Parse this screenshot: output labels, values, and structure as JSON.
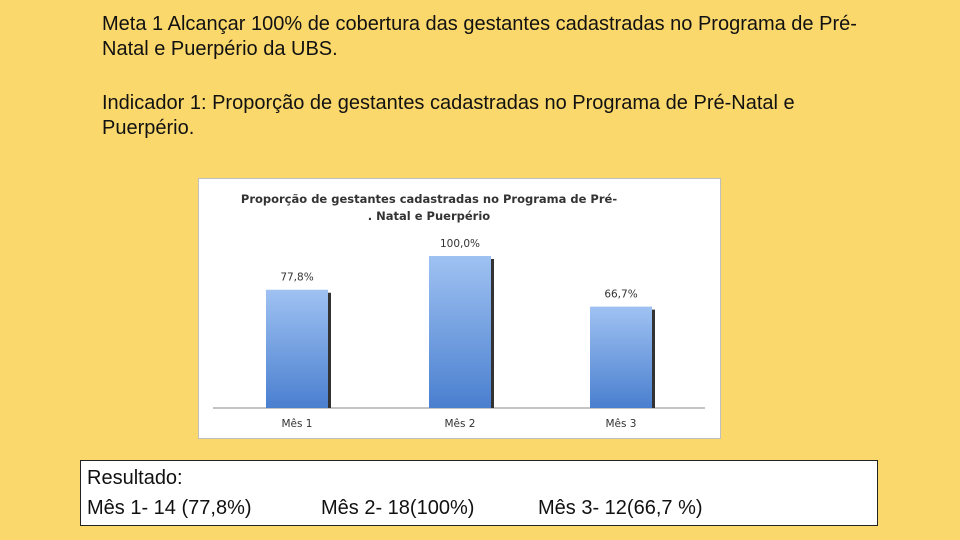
{
  "meta": {
    "label": "Meta 1",
    "text": " Alcançar 100% de cobertura das gestantes cadastradas no Programa de Pré-Natal e Puerpério da UBS."
  },
  "indicador": {
    "label": "Indicador 1:",
    "text": " Proporção de gestantes cadastradas no Programa de Pré-Natal e Puerpério."
  },
  "chart_data": {
    "type": "bar",
    "title_lines": [
      "Proporção de gestantes cadastradas no Programa de Pré-",
      ". Natal e Puerpério"
    ],
    "categories": [
      "Mês 1",
      "Mês 2",
      "Mês 3"
    ],
    "values": [
      77.8,
      100.0,
      66.7
    ],
    "data_labels": [
      "77,8%",
      "100,0%",
      "66,7%"
    ],
    "ylim": [
      0,
      100
    ],
    "grid": false,
    "bar_color": "#5b8fd6"
  },
  "resultado": {
    "title": "Resultado:",
    "items": [
      "Mês 1- 14 (77,8%)",
      "Mês 2- 18(100%)",
      "Mês 3-  12(66,7 %)"
    ]
  }
}
